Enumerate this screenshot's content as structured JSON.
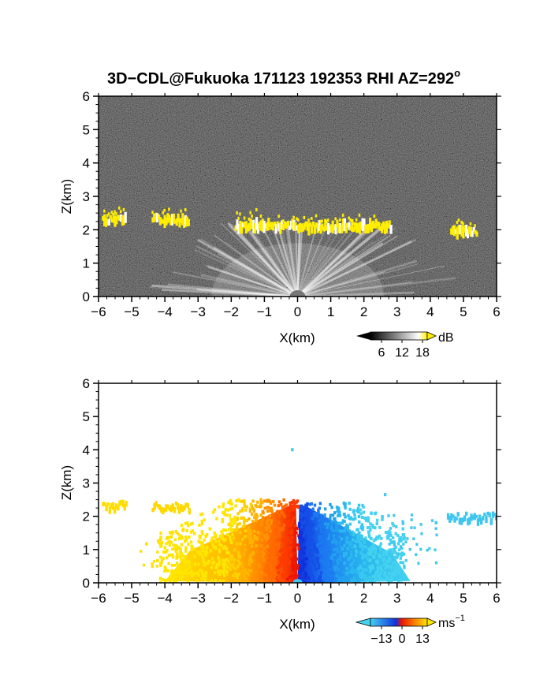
{
  "title": {
    "main": "3D−CDL@Fukuoka 171123 192353 RHI AZ=292",
    "degree": "o"
  },
  "colors": {
    "echo_yellow": "#ffee00",
    "velocity_neg_light": "#33ccee",
    "velocity_neg_dark": "#1133dd",
    "velocity_pos_dark": "#ee2200",
    "velocity_pos_light": "#ffdd00"
  },
  "chart_data": [
    {
      "type": "heatmap",
      "panel": "top",
      "quantity": "backscatter intensity",
      "xlabel": "X(km)",
      "ylabel": "Z(km)",
      "xlim": [
        -6,
        6
      ],
      "ylim": [
        0,
        6
      ],
      "xticks": [
        -6,
        -5,
        -4,
        -3,
        -2,
        -1,
        0,
        1,
        2,
        3,
        4,
        5,
        6
      ],
      "yticks": [
        0,
        1,
        2,
        3,
        4,
        5,
        6
      ],
      "colorbar": {
        "unit": "dB",
        "ticks": [
          6,
          12,
          18
        ],
        "colors": [
          "#000000",
          "#ffffff",
          "#ffee00"
        ]
      },
      "cloud_layer_segments": [
        {
          "x0": -5.9,
          "x1": -5.2,
          "z": 2.3
        },
        {
          "x0": -4.4,
          "x1": -3.3,
          "z": 2.3
        },
        {
          "x0": -1.9,
          "x1": 2.8,
          "z": 2.1
        },
        {
          "x0": 4.6,
          "x1": 5.4,
          "z": 1.95
        }
      ]
    },
    {
      "type": "heatmap",
      "panel": "bottom",
      "quantity": "radial velocity",
      "xlabel": "X(km)",
      "ylabel": "Z(km)",
      "xlim": [
        -6,
        6
      ],
      "ylim": [
        0,
        6
      ],
      "xticks": [
        -6,
        -5,
        -4,
        -3,
        -2,
        -1,
        0,
        1,
        2,
        3,
        4,
        5,
        6
      ],
      "yticks": [
        0,
        1,
        2,
        3,
        4,
        5,
        6
      ],
      "colorbar": {
        "unit": "ms",
        "unit_superscript": "−1",
        "ticks": [
          -13,
          0,
          13
        ],
        "colors": [
          "#33ccee",
          "#1133dd",
          "#ee2200",
          "#ffdd00"
        ]
      },
      "isolated_points": [
        {
          "x": -0.2,
          "z": 4.05
        },
        {
          "x": 2.6,
          "z": 2.7
        }
      ]
    }
  ]
}
